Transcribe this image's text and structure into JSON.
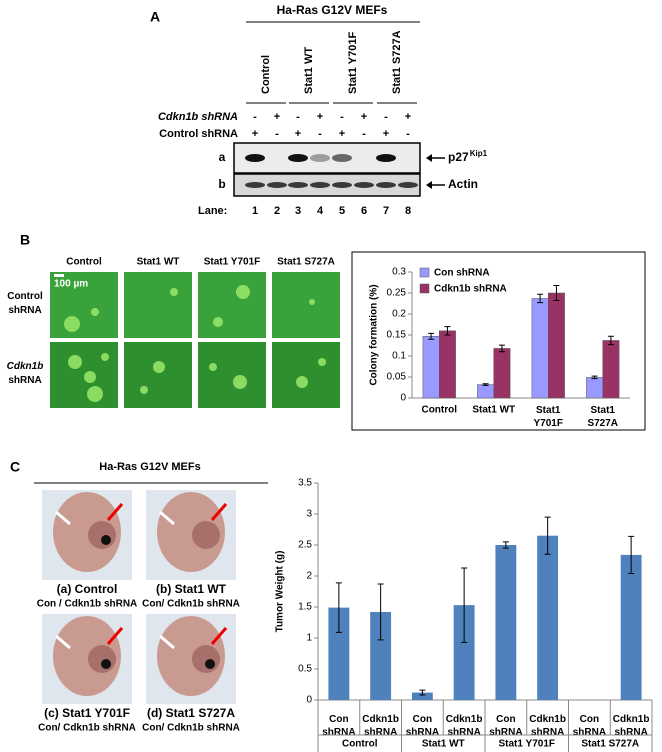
{
  "panel_a": {
    "label": "A",
    "title": "Ha-Ras G12V MEFs",
    "groups": [
      "Control",
      "Stat1 WT",
      "Stat1 Y701F",
      "Stat1 S727A"
    ],
    "rows": [
      {
        "label": "Cdkn1b shRNA",
        "signs": [
          "-",
          "+",
          "-",
          "+",
          "-",
          "+",
          "-",
          "+"
        ]
      },
      {
        "label": "Control shRNA",
        "signs": [
          "+",
          "-",
          "+",
          "-",
          "+",
          "-",
          "+",
          "-"
        ]
      }
    ],
    "blots": [
      {
        "row": "a",
        "target": "p27",
        "sup": "Kip1"
      },
      {
        "row": "b",
        "target": "Actin"
      }
    ],
    "lane_label": "Lane:",
    "lanes": [
      1,
      2,
      3,
      4,
      5,
      6,
      7,
      8
    ]
  },
  "panel_b": {
    "label": "B",
    "columns": [
      "Control",
      "Stat1 WT",
      "Stat1 Y701F",
      "Stat1 S727A"
    ],
    "rows": [
      "Control shRNA",
      "Cdkn1b shRNA"
    ],
    "scale": "100 µm"
  },
  "panel_c": {
    "label": "C",
    "title": "Ha-Ras G12V MEFs",
    "photos": [
      {
        "title": "(a)  Control",
        "sub": "Con / Cdkn1b shRNA"
      },
      {
        "title": "(b) Stat1 WT",
        "sub": "Con/ Cdkn1b shRNA"
      },
      {
        "title": "(c) Stat1 Y701F",
        "sub": "Con/ Cdkn1b shRNA"
      },
      {
        "title": "(d) Stat1 S727A",
        "sub": "Con/ Cdkn1b shRNA"
      }
    ]
  },
  "chart_data": [
    {
      "type": "bar",
      "ylabel": "Colony formation (%)",
      "categories": [
        "Control",
        "Stat1 WT",
        "Stat1 Y701F",
        "Stat1 S727A"
      ],
      "series": [
        {
          "name": "Con shRNA",
          "color": "#9999ff",
          "values": [
            0.147,
            0.032,
            0.237,
            0.049
          ],
          "errors": [
            0.007,
            0.002,
            0.01,
            0.003
          ]
        },
        {
          "name": "Cdkn1b shRNA",
          "color": "#993366",
          "values": [
            0.16,
            0.118,
            0.25,
            0.137
          ],
          "errors": [
            0.01,
            0.008,
            0.018,
            0.01
          ]
        }
      ],
      "ylim": [
        0,
        0.3
      ],
      "yticks": [
        0,
        0.05,
        0.1,
        0.15,
        0.2,
        0.25,
        0.3
      ],
      "legend": "upper left"
    },
    {
      "type": "bar",
      "ylabel": "Tumor Weight (g)",
      "categories": [
        "Con shRNA",
        "Cdkn1b shRNA",
        "Con shRNA",
        "Cdkn1b shRNA",
        "Con shRNA",
        "Cdkn1b shRNA",
        "Con shRNA",
        "Cdkn1b shRNA"
      ],
      "groups": [
        "Control",
        "Stat1 WT",
        "Stat1 Y701F",
        "Stat1 S727A"
      ],
      "series": [
        {
          "color": "#4f81bd",
          "values": [
            1.49,
            1.42,
            0.12,
            1.53,
            2.5,
            2.65,
            null,
            2.34
          ],
          "errors": [
            0.4,
            0.45,
            0.04,
            0.6,
            0.05,
            0.3,
            null,
            0.3
          ]
        }
      ],
      "ylim": [
        0,
        3.5
      ],
      "yticks": [
        0,
        0.5,
        1,
        1.5,
        2,
        2.5,
        3,
        3.5
      ]
    }
  ]
}
